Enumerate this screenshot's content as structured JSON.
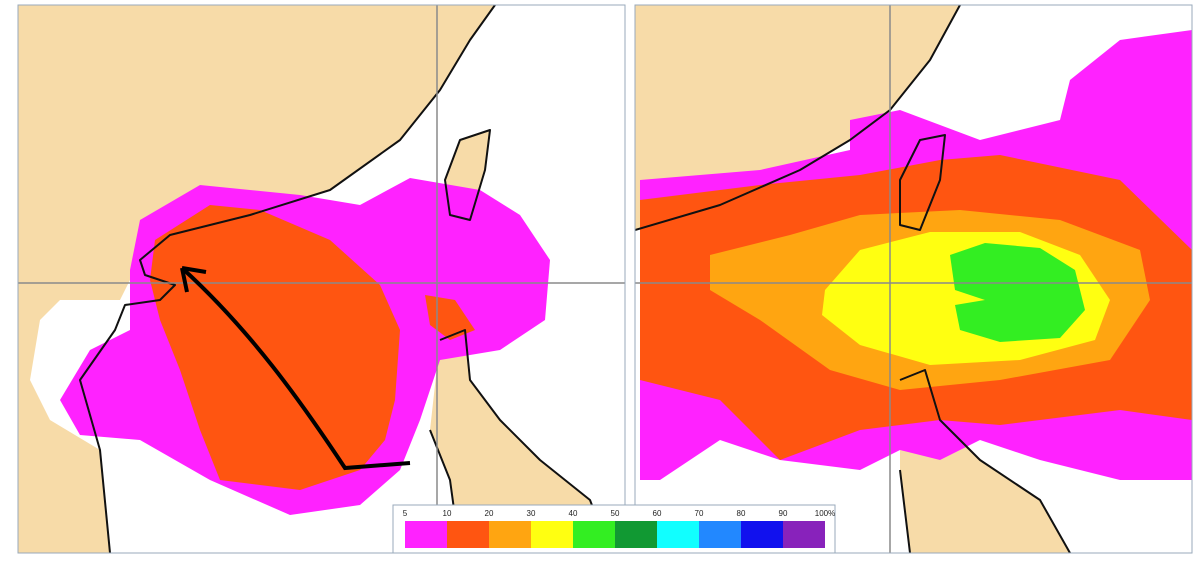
{
  "legend": {
    "labels": [
      "5",
      "10",
      "20",
      "30",
      "40",
      "50",
      "60",
      "70",
      "80",
      "90",
      "100%"
    ],
    "colors": [
      "#ff22ff",
      "#ff5511",
      "#ffa511",
      "#ffff11",
      "#33ee22",
      "#119933",
      "#11ffff",
      "#2288ff",
      "#1111ee",
      "#8822bb"
    ]
  }
}
